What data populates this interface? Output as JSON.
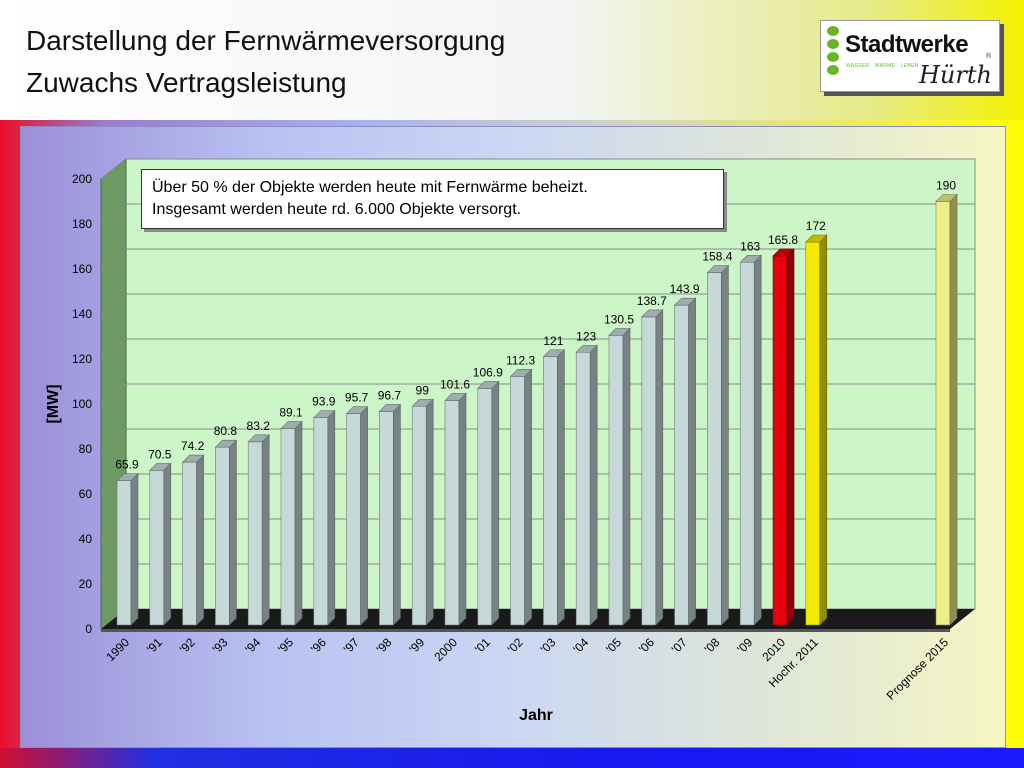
{
  "slide": {
    "title_line1": "Darstellung der Fernwärmeversorgung",
    "title_line2": "Zuwachs Vertragsleistung"
  },
  "logo": {
    "name": "Stadtwerke",
    "city": "Hürth",
    "tagline": "WASSER · WÄRME · LEBEN",
    "registered": "®"
  },
  "note": {
    "line1": "Über 50 % der Objekte werden heute mit Fernwärme beheizt.",
    "line2": "Insgesamt werden heute rd. 6.000 Objekte versorgt."
  },
  "chart_data": {
    "type": "bar",
    "title": "",
    "xlabel": "Jahr",
    "ylabel": "[MW]",
    "ylim": [
      0,
      200
    ],
    "yticks": [
      0,
      20,
      40,
      60,
      80,
      100,
      120,
      140,
      160,
      180,
      200
    ],
    "grid": true,
    "categories": [
      "1990",
      "'91",
      "'92",
      "'93",
      "'94",
      "'95",
      "'96",
      "'97",
      "'98",
      "'99",
      "2000",
      "'01",
      "'02",
      "'03",
      "'04",
      "'05",
      "'06",
      "'07",
      "'08",
      "'09",
      "2010",
      "Hochr. 2011",
      "Prognose 2015"
    ],
    "values": [
      65.9,
      70.5,
      74.2,
      80.8,
      83.2,
      89.1,
      93.9,
      95.7,
      96.7,
      99,
      101.6,
      106.9,
      112.3,
      121,
      123,
      130.5,
      138.7,
      143.9,
      158.4,
      163,
      165.8,
      172,
      190
    ],
    "value_labels": [
      "65.9",
      "70.5",
      "74.2",
      "80.8",
      "83.2",
      "89.1",
      "93.9",
      "95.7",
      "96.7",
      "99",
      "101.6",
      "106.9",
      "112.3",
      "121",
      "123",
      "130.5",
      "138.7",
      "143.9",
      "158.4",
      "163",
      "165.8",
      "172",
      "190"
    ],
    "bar_colors": [
      "#c6d8d8",
      "#c6d8d8",
      "#c6d8d8",
      "#c6d8d8",
      "#c6d8d8",
      "#c6d8d8",
      "#c6d8d8",
      "#c6d8d8",
      "#c6d8d8",
      "#c6d8d8",
      "#c6d8d8",
      "#c6d8d8",
      "#c6d8d8",
      "#c6d8d8",
      "#c6d8d8",
      "#c6d8d8",
      "#c6d8d8",
      "#c6d8d8",
      "#c6d8d8",
      "#c6d8d8",
      "#e8000e",
      "#f2ea00",
      "#eeee88"
    ],
    "colors": {
      "plot_background": "#ccf5c8",
      "left_wall": "#6c9a62",
      "floor": "#1a1a1a",
      "gridline": "#8a8a8a"
    }
  }
}
